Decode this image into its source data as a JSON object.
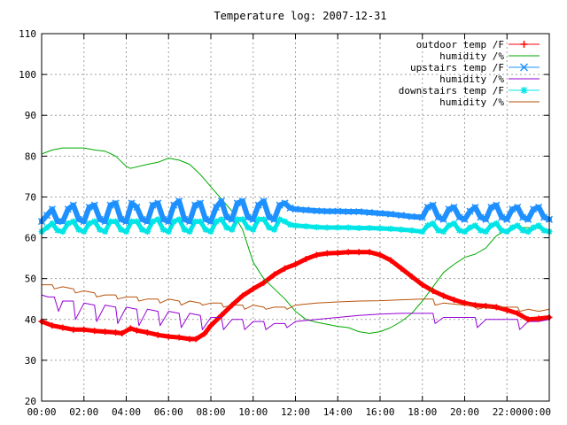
{
  "chart_data": {
    "type": "line",
    "title": "Temperature log: 2007-12-31",
    "xlabel": "",
    "ylabel": "",
    "xlim": [
      0,
      24
    ],
    "ylim": [
      20,
      110
    ],
    "x_ticks": [
      "00:00",
      "02:00",
      "04:00",
      "06:00",
      "08:00",
      "10:00",
      "12:00",
      "14:00",
      "16:00",
      "18:00",
      "20:00",
      "22:00",
      "00:00"
    ],
    "y_ticks": [
      "20",
      "30",
      "40",
      "50",
      "60",
      "70",
      "80",
      "90",
      "100",
      "110"
    ],
    "grid": true,
    "legend_position": "top-right",
    "series": [
      {
        "name": "outdoor temp /F",
        "color": "#ff0000",
        "marker": "plus",
        "x": [
          0,
          0.5,
          1,
          1.5,
          2,
          2.5,
          3,
          3.5,
          3.8,
          4.2,
          4.5,
          5,
          5.5,
          6,
          6.5,
          7,
          7.3,
          7.7,
          8,
          8.5,
          9,
          9.5,
          10,
          10.5,
          11,
          11.5,
          12,
          12.5,
          13,
          13.5,
          14,
          14.5,
          15,
          15.5,
          16,
          16.5,
          17,
          17.5,
          18,
          18.5,
          19,
          19.5,
          20,
          20.5,
          21,
          21.5,
          22,
          22.5,
          23,
          23.5,
          24
        ],
        "y": [
          39.5,
          38.5,
          38,
          37.5,
          37.5,
          37.2,
          37,
          36.8,
          36.6,
          37.8,
          37.3,
          36.8,
          36.2,
          35.8,
          35.6,
          35.2,
          35.2,
          36.5,
          38.5,
          41,
          43.5,
          45.8,
          47.5,
          49,
          51,
          52.5,
          53.5,
          54.8,
          55.8,
          56.2,
          56.3,
          56.5,
          56.5,
          56.5,
          55.8,
          54.5,
          52.5,
          50.5,
          48.5,
          47,
          45.8,
          44.8,
          44,
          43.5,
          43.3,
          43,
          42.3,
          41.5,
          40,
          40.2,
          40.5
        ]
      },
      {
        "name": "humidity /%",
        "color": "#00aa00",
        "marker": "none",
        "x": [
          0,
          0.5,
          1,
          1.5,
          2,
          2.5,
          3,
          3.5,
          3.8,
          4,
          4.2,
          5,
          5.5,
          6,
          6.5,
          7,
          7.5,
          8,
          8.5,
          9,
          9.5,
          10,
          10.5,
          11,
          11.5,
          12,
          12.5,
          13,
          13.5,
          14,
          14.5,
          15,
          15.5,
          16,
          16.5,
          17,
          17.5,
          18,
          18.5,
          19,
          19.5,
          20,
          20.5,
          21,
          21.5,
          22,
          22.5,
          23,
          23.5,
          24
        ],
        "y": [
          80.5,
          81.5,
          82,
          82,
          82,
          81.5,
          81.2,
          80,
          78.5,
          77.5,
          77,
          78,
          78.5,
          79.5,
          79,
          78,
          75.5,
          72.5,
          69.5,
          66.5,
          62,
          54,
          50,
          47.5,
          45,
          42,
          40,
          39.3,
          38.8,
          38.3,
          38,
          37,
          36.6,
          37,
          38,
          39.5,
          41.5,
          44.5,
          48,
          51.5,
          53.5,
          55.2,
          56,
          57.5,
          60.5,
          62,
          62.5,
          62.5,
          62.3,
          62
        ]
      },
      {
        "name": "upstairs temp /F",
        "color": "#1e90ff",
        "marker": "x",
        "x": [
          0,
          0.25,
          0.5,
          0.75,
          1,
          1.25,
          1.5,
          1.75,
          2,
          2.25,
          2.5,
          2.75,
          3,
          3.25,
          3.5,
          3.75,
          4,
          4.25,
          4.5,
          4.75,
          5,
          5.25,
          5.5,
          5.75,
          6,
          6.25,
          6.5,
          6.75,
          7,
          7.25,
          7.5,
          7.75,
          8,
          8.25,
          8.5,
          8.75,
          9,
          9.25,
          9.5,
          9.75,
          10,
          10.25,
          10.5,
          10.75,
          11,
          11.25,
          11.5,
          11.75,
          12,
          12.5,
          13,
          13.5,
          14,
          14.5,
          15,
          15.5,
          16,
          16.5,
          17,
          17.5,
          18,
          18.25,
          18.5,
          18.75,
          19,
          19.25,
          19.5,
          19.75,
          20,
          20.25,
          20.5,
          20.75,
          21,
          21.25,
          21.5,
          21.75,
          22,
          22.25,
          22.5,
          22.75,
          23,
          23.25,
          23.5,
          23.75,
          24
        ],
        "y": [
          64,
          65.5,
          67,
          64,
          64,
          67,
          68,
          64.5,
          64,
          67.5,
          68,
          64.5,
          64,
          68,
          68.5,
          64.5,
          64,
          68.5,
          67.5,
          64.5,
          64,
          68,
          68.5,
          64.5,
          64,
          68,
          69,
          64.5,
          64,
          68,
          68.5,
          64.5,
          64,
          67.5,
          69,
          65,
          64.5,
          68.5,
          69,
          65,
          64.5,
          68,
          69,
          65,
          64.5,
          68,
          68.5,
          67.3,
          67,
          66.8,
          66.6,
          66.5,
          66.5,
          66.4,
          66.4,
          66.2,
          66,
          65.8,
          65.5,
          65.2,
          65,
          67.5,
          68,
          65,
          64.5,
          67,
          67.5,
          65,
          64.5,
          66.5,
          67.5,
          65,
          64.5,
          67.5,
          68,
          65,
          64.5,
          67,
          67.5,
          65,
          64.5,
          67,
          67.5,
          65,
          64.5
        ]
      },
      {
        "name": "humidity /%",
        "color": "#9400d3",
        "marker": "none",
        "x": [
          0,
          0.3,
          0.6,
          0.8,
          1,
          1.5,
          1.6,
          2,
          2.5,
          2.6,
          3,
          3.5,
          3.6,
          4,
          4.5,
          4.6,
          5,
          5.5,
          5.6,
          6,
          6.5,
          6.6,
          7,
          7.5,
          7.6,
          8,
          8.5,
          8.6,
          9,
          9.5,
          9.6,
          10,
          10.5,
          10.6,
          11,
          11.5,
          11.6,
          12,
          13,
          14,
          15,
          16,
          17,
          18,
          18.5,
          18.6,
          19,
          20,
          20.5,
          20.6,
          21,
          22,
          22.5,
          22.6,
          23,
          23.5,
          24
        ],
        "y": [
          46,
          45.5,
          45.5,
          42,
          44.5,
          44.5,
          40,
          44,
          43.5,
          39.5,
          43.5,
          43,
          39,
          43,
          42.5,
          38.5,
          42.5,
          42,
          38.5,
          42,
          41.5,
          38,
          41.5,
          41,
          37.5,
          40.5,
          40.5,
          37.5,
          40,
          40,
          37.5,
          39.5,
          39.5,
          37.5,
          39,
          39,
          38,
          39.5,
          40,
          40.5,
          41,
          41.3,
          41.5,
          41.5,
          41.5,
          39,
          40.5,
          40.5,
          40.5,
          38,
          40,
          40,
          40,
          37.5,
          39.5,
          39.5,
          40
        ]
      },
      {
        "name": "downstairs temp /F",
        "color": "#00e5e5",
        "marker": "star",
        "x": [
          0,
          0.25,
          0.5,
          0.75,
          1,
          1.25,
          1.5,
          1.75,
          2,
          2.25,
          2.5,
          2.75,
          3,
          3.25,
          3.5,
          3.75,
          4,
          4.25,
          4.5,
          4.75,
          5,
          5.25,
          5.5,
          5.75,
          6,
          6.25,
          6.5,
          6.75,
          7,
          7.25,
          7.5,
          7.75,
          8,
          8.25,
          8.5,
          8.75,
          9,
          9.25,
          9.5,
          9.75,
          10,
          10.25,
          10.5,
          10.75,
          11,
          11.25,
          11.5,
          11.75,
          12,
          12.5,
          13,
          13.5,
          14,
          14.5,
          15,
          15.5,
          16,
          16.5,
          17,
          17.5,
          18,
          18.25,
          18.5,
          18.75,
          19,
          19.25,
          19.5,
          19.75,
          20,
          20.25,
          20.5,
          20.75,
          21,
          21.25,
          21.5,
          21.75,
          22,
          22.25,
          22.5,
          22.75,
          23,
          23.25,
          23.5,
          23.75,
          24
        ],
        "y": [
          61.5,
          62.5,
          63.5,
          61.8,
          61.5,
          63.5,
          64,
          62,
          61.5,
          63.5,
          64,
          62,
          61.5,
          64,
          64,
          62,
          61.5,
          64,
          64,
          62,
          61.5,
          64,
          64.5,
          62,
          61.5,
          64,
          64.5,
          62,
          61.5,
          64,
          64,
          62,
          61.5,
          64,
          64.5,
          62.5,
          62,
          64.5,
          64.5,
          62.5,
          62,
          64.5,
          64.5,
          62.5,
          62,
          64.5,
          64,
          63.2,
          63,
          62.8,
          62.6,
          62.5,
          62.5,
          62.5,
          62.4,
          62.4,
          62.3,
          62.2,
          62,
          61.8,
          61.5,
          63,
          63.5,
          61.8,
          61.5,
          63,
          63.5,
          61.8,
          61.5,
          62.5,
          63,
          61.8,
          61.5,
          63,
          63.5,
          61.8,
          61.5,
          62.5,
          63,
          61.8,
          61.5,
          62.5,
          63,
          61.8,
          61.5
        ]
      },
      {
        "name": "humidity /%",
        "color": "#b8520a",
        "marker": "none",
        "x": [
          0,
          0.5,
          0.6,
          1,
          1.5,
          1.6,
          2,
          2.5,
          2.6,
          3,
          3.5,
          3.6,
          4,
          4.5,
          4.6,
          5,
          5.5,
          5.6,
          6,
          6.5,
          6.6,
          7,
          7.5,
          7.6,
          8,
          8.5,
          8.6,
          9,
          9.5,
          9.6,
          10,
          10.5,
          10.6,
          11,
          11.5,
          11.6,
          12,
          13,
          14,
          15,
          16,
          17,
          18,
          18.5,
          18.6,
          19,
          20,
          20.5,
          20.6,
          21,
          22,
          22.5,
          22.6,
          23,
          23.5,
          24
        ],
        "y": [
          48.5,
          48.5,
          47.5,
          48,
          47.5,
          46.5,
          47,
          46.5,
          45.5,
          46,
          46,
          45,
          45.5,
          45.5,
          44.5,
          45,
          45,
          44,
          45,
          44.5,
          43.5,
          44.5,
          44,
          43.5,
          44,
          44,
          43,
          43.5,
          43.5,
          42.5,
          43.5,
          43,
          42.5,
          43,
          43,
          42.5,
          43.5,
          44,
          44.3,
          44.5,
          44.6,
          44.8,
          45,
          45,
          43.5,
          44,
          43.5,
          43.5,
          42.5,
          43,
          43,
          43,
          42,
          42.5,
          42,
          42.5
        ]
      }
    ]
  }
}
